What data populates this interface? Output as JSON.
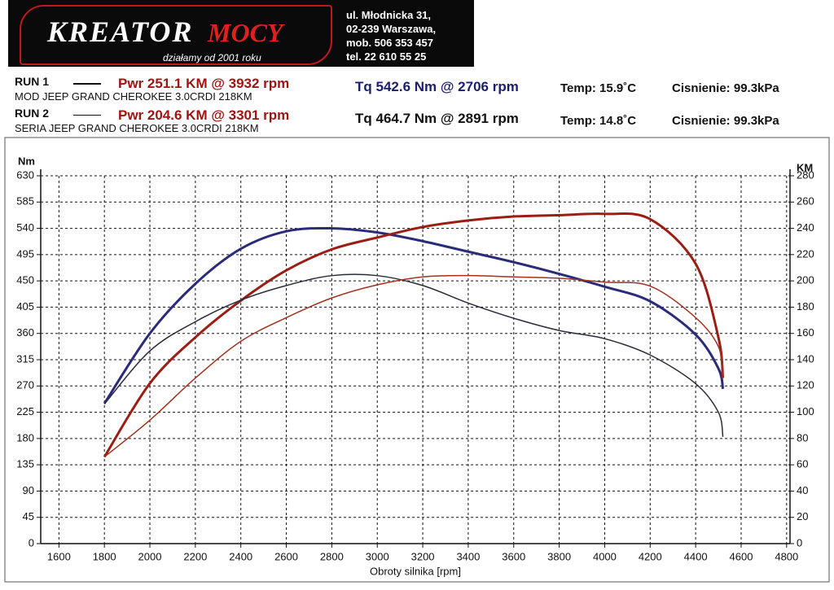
{
  "header": {
    "logo_main": "KREATOR",
    "logo_accent": "MOCY",
    "slogan": "działamy od 2001 roku",
    "address": [
      "ul. Młodnicka 31,",
      "02-239  Warszawa,",
      "mob.  506 353 457",
      "tel.  22 610 55 25"
    ]
  },
  "runs": [
    {
      "label": "RUN 1",
      "pwr": "Pwr  251.1 KM @ 3932 rpm",
      "description": "MOD JEEP GRAND CHEROKEE 3.0CRDI 218KM",
      "tq": "Tq 542.6 Nm @ 2706 rpm",
      "temp": "Temp: 15.9˚C",
      "pressure": "Cisnienie: 99.3kPa"
    },
    {
      "label": "RUN 2",
      "pwr": "Pwr  204.6 KM @ 3301 rpm",
      "description": "SERIA JEEP GRAND CHEROKEE 3.0CRDI 218KM",
      "tq": "Tq 464.7 Nm @ 2891 rpm",
      "temp": "Temp: 14.8˚C",
      "pressure": "Cisnienie: 99.3kPa"
    }
  ],
  "chart_data": {
    "type": "line",
    "ylabel": "Nm",
    "y2label": "KM",
    "xlabel": "Obroty silnika [rpm]",
    "x": [
      1800,
      2000,
      2200,
      2400,
      2600,
      2800,
      3000,
      3200,
      3400,
      3600,
      3800,
      4000,
      4200,
      4400,
      4500,
      4520
    ],
    "xlim": [
      1520,
      4815
    ],
    "xticks": [
      1600,
      1800,
      2000,
      2200,
      2400,
      2600,
      2800,
      3000,
      3200,
      3400,
      3600,
      3800,
      4000,
      4200,
      4400,
      4600,
      4800
    ],
    "ylim": [
      0,
      630
    ],
    "yticks": [
      0,
      45,
      90,
      135,
      180,
      225,
      270,
      315,
      360,
      405,
      450,
      495,
      540,
      585,
      630
    ],
    "y2lim": [
      0,
      280
    ],
    "y2ticks": [
      0,
      20,
      40,
      60,
      80,
      100,
      120,
      140,
      160,
      180,
      200,
      220,
      240,
      260,
      280
    ],
    "grid": true,
    "series": [
      {
        "color": "#2a2c7a",
        "width": 3,
        "values": [
          240,
          360,
          445,
          505,
          535,
          540,
          533,
          518,
          500,
          482,
          462,
          440,
          415,
          358,
          300,
          265
        ]
      },
      {
        "color": "#9a1e14",
        "width": 3,
        "axis": "y2",
        "values": [
          66,
          122,
          157,
          185,
          208,
          224,
          233,
          241,
          246,
          249,
          250,
          251,
          247,
          213,
          157,
          126
        ]
      },
      {
        "color": "#2a2c3a",
        "width": 1.5,
        "values": [
          239,
          330,
          380,
          417,
          442,
          459,
          459,
          442,
          412,
          386,
          365,
          351,
          323,
          274,
          225,
          183
        ]
      },
      {
        "color": "#a0321e",
        "width": 1.5,
        "axis": "y2",
        "values": [
          66,
          94,
          126,
          154,
          172,
          187,
          197,
          203,
          204,
          203,
          202,
          199,
          196,
          172,
          150,
          126
        ]
      }
    ]
  }
}
